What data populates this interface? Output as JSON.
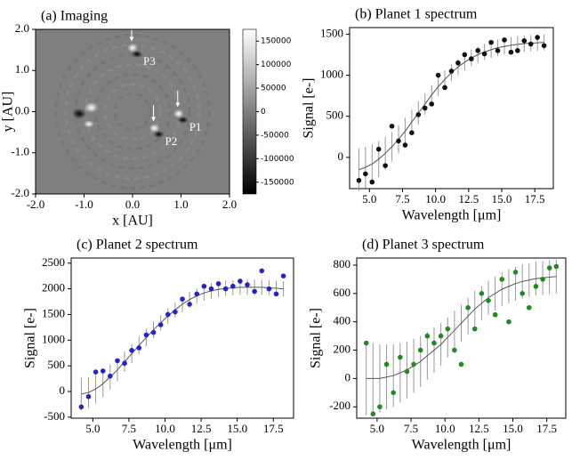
{
  "chart_data": [
    {
      "type": "image",
      "title": "(a) Imaging",
      "xlabel": "x [AU]",
      "ylabel": "y [AU]",
      "xlim": [
        -2,
        2
      ],
      "ylim": [
        -2,
        2
      ],
      "xticks": [
        {
          "value": -2,
          "label": "-2.0"
        },
        {
          "value": -1,
          "label": "-1.0"
        },
        {
          "value": 0,
          "label": "0.0"
        },
        {
          "value": 1,
          "label": "1.0"
        },
        {
          "value": 2,
          "label": "2.0"
        }
      ],
      "yticks": [
        {
          "value": -2,
          "label": "-2.0"
        },
        {
          "value": -1,
          "label": "-1.0"
        },
        {
          "value": 0,
          "label": "0.0"
        },
        {
          "value": 1,
          "label": "1.0"
        },
        {
          "value": 2,
          "label": "2.0"
        }
      ],
      "planets": [
        {
          "label": "P1",
          "x": 0.95,
          "y": -0.05
        },
        {
          "label": "P2",
          "x": 0.45,
          "y": -0.4
        },
        {
          "label": "P3",
          "x": 0.0,
          "y": 1.55
        }
      ],
      "colorbar": {
        "lim": [
          -175000,
          175000
        ],
        "ticks": [
          -150000,
          -100000,
          -50000,
          0,
          50000,
          100000,
          150000
        ]
      }
    },
    {
      "type": "scatter",
      "title": "(b) Planet 1 spectrum",
      "xlabel": "Wavelength [μm]",
      "ylabel": "Signal [e-]",
      "color": "#111111",
      "xlim": [
        3.5,
        18.9
      ],
      "ylim": [
        -380,
        1580
      ],
      "xticks": [
        {
          "value": 5,
          "label": "5.0"
        },
        {
          "value": 7.5,
          "label": "7.5"
        },
        {
          "value": 10,
          "label": "10.0"
        },
        {
          "value": 12.5,
          "label": "12.5"
        },
        {
          "value": 15,
          "label": "15.0"
        },
        {
          "value": 17.5,
          "label": "17.5"
        }
      ],
      "yticks": [
        0,
        500,
        1000,
        1500
      ],
      "x": [
        4.2,
        4.7,
        5.2,
        5.7,
        6.2,
        6.7,
        7.2,
        7.7,
        8.2,
        8.7,
        9.2,
        9.7,
        10.2,
        10.7,
        11.2,
        11.7,
        12.2,
        12.7,
        13.2,
        13.7,
        14.2,
        14.7,
        15.2,
        15.7,
        16.2,
        16.7,
        17.2,
        17.7,
        18.2
      ],
      "values": [
        -280,
        -200,
        -300,
        100,
        -100,
        380,
        200,
        150,
        300,
        520,
        600,
        650,
        1000,
        850,
        1050,
        1150,
        1250,
        1200,
        1300,
        1260,
        1400,
        1300,
        1430,
        1280,
        1300,
        1420,
        1380,
        1460,
        1360
      ],
      "model": [
        -150,
        -120,
        -80,
        -20,
        50,
        130,
        220,
        320,
        430,
        540,
        650,
        760,
        860,
        950,
        1030,
        1100,
        1160,
        1210,
        1250,
        1285,
        1310,
        1335,
        1350,
        1365,
        1375,
        1385,
        1390,
        1395,
        1400
      ],
      "model_error": [
        260,
        250,
        240,
        220,
        200,
        180,
        170,
        160,
        150,
        140,
        130,
        120,
        110,
        110,
        100,
        100,
        100,
        100,
        100,
        100,
        100,
        100,
        100,
        100,
        100,
        100,
        100,
        100,
        100
      ]
    },
    {
      "type": "scatter",
      "title": "(c) Planet 2 spectrum",
      "xlabel": "Wavelength [μm]",
      "ylabel": "Signal [e-]",
      "color": "#2323c8",
      "xlim": [
        3.5,
        18.9
      ],
      "ylim": [
        -520,
        2600
      ],
      "xticks": [
        {
          "value": 5,
          "label": "5.0"
        },
        {
          "value": 7.5,
          "label": "7.5"
        },
        {
          "value": 10,
          "label": "10.0"
        },
        {
          "value": 12.5,
          "label": "12.5"
        },
        {
          "value": 15,
          "label": "15.0"
        },
        {
          "value": 17.5,
          "label": "17.5"
        }
      ],
      "yticks": [
        -500,
        0,
        500,
        1000,
        1500,
        2000,
        2500
      ],
      "x": [
        4.2,
        4.7,
        5.2,
        5.7,
        6.2,
        6.7,
        7.2,
        7.7,
        8.2,
        8.7,
        9.2,
        9.7,
        10.2,
        10.7,
        11.2,
        11.7,
        12.2,
        12.7,
        13.2,
        13.7,
        14.2,
        14.7,
        15.2,
        15.7,
        16.2,
        16.7,
        17.2,
        17.7,
        18.2
      ],
      "values": [
        -300,
        -100,
        380,
        400,
        300,
        600,
        550,
        800,
        850,
        1100,
        1150,
        1300,
        1500,
        1550,
        1800,
        1700,
        1900,
        2050,
        2000,
        2100,
        2000,
        2050,
        2150,
        2080,
        1950,
        2350,
        2000,
        1900,
        2250
      ],
      "model": [
        -50,
        -20,
        50,
        150,
        280,
        420,
        580,
        740,
        900,
        1050,
        1200,
        1340,
        1470,
        1590,
        1700,
        1790,
        1860,
        1920,
        1960,
        1990,
        2010,
        2020,
        2030,
        2030,
        2030,
        2030,
        2020,
        2010,
        2000
      ],
      "model_error": [
        320,
        300,
        280,
        260,
        240,
        220,
        200,
        190,
        180,
        170,
        160,
        150,
        150,
        150,
        150,
        150,
        150,
        150,
        150,
        150,
        150,
        150,
        150,
        150,
        150,
        150,
        150,
        150,
        150
      ]
    },
    {
      "type": "scatter",
      "title": "(d) Planet 3 spectrum",
      "xlabel": "Wavelength [μm]",
      "ylabel": "Signal [e-]",
      "color": "#1f8a1f",
      "xlim": [
        3.5,
        18.9
      ],
      "ylim": [
        -280,
        850
      ],
      "xticks": [
        {
          "value": 5,
          "label": "5.0"
        },
        {
          "value": 7.5,
          "label": "7.5"
        },
        {
          "value": 10,
          "label": "10.0"
        },
        {
          "value": 12.5,
          "label": "12.5"
        },
        {
          "value": 15,
          "label": "15.0"
        },
        {
          "value": 17.5,
          "label": "17.5"
        }
      ],
      "yticks": [
        -200,
        0,
        200,
        400,
        600,
        800
      ],
      "x": [
        4.2,
        4.7,
        5.2,
        5.7,
        6.2,
        6.7,
        7.2,
        7.7,
        8.2,
        8.7,
        9.2,
        9.7,
        10.2,
        10.7,
        11.2,
        11.7,
        12.2,
        12.7,
        13.2,
        13.7,
        14.2,
        14.7,
        15.2,
        15.7,
        16.2,
        16.7,
        17.2,
        17.7,
        18.2
      ],
      "values": [
        250,
        -250,
        -200,
        100,
        -100,
        150,
        50,
        100,
        200,
        300,
        250,
        300,
        350,
        200,
        100,
        500,
        350,
        600,
        550,
        450,
        700,
        400,
        750,
        600,
        500,
        650,
        700,
        780,
        790
      ],
      "model": [
        0,
        0,
        0,
        10,
        20,
        40,
        60,
        90,
        120,
        160,
        200,
        240,
        290,
        340,
        390,
        440,
        490,
        530,
        570,
        600,
        630,
        650,
        670,
        685,
        695,
        705,
        710,
        715,
        720
      ],
      "model_error": [
        260,
        250,
        240,
        230,
        220,
        210,
        200,
        190,
        180,
        170,
        160,
        150,
        140,
        140,
        130,
        130,
        130,
        120,
        120,
        120,
        120,
        120,
        120,
        120,
        120,
        120,
        120,
        120,
        120
      ]
    }
  ]
}
